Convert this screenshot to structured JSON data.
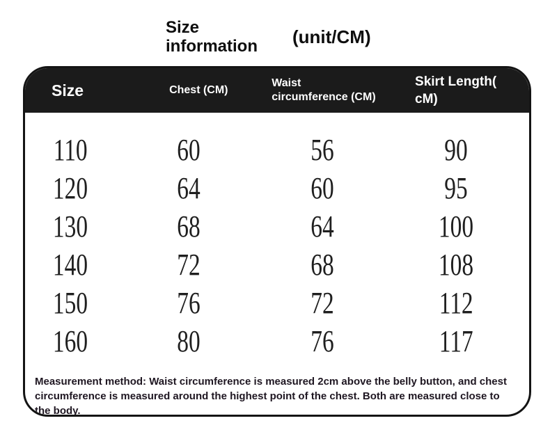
{
  "title": {
    "main": "Size information",
    "unit": "(unit/CM)"
  },
  "table": {
    "columns": [
      {
        "id": "size",
        "lines": [
          "Size"
        ]
      },
      {
        "id": "chest",
        "lines": [
          "Chest (CM)"
        ]
      },
      {
        "id": "waist",
        "lines": [
          "Waist",
          "circumference (CM)"
        ]
      },
      {
        "id": "skirt",
        "lines": [
          "Skirt Length(",
          "cM)"
        ]
      }
    ],
    "rows": [
      [
        "110",
        "60",
        "56",
        "90"
      ],
      [
        "120",
        "64",
        "60",
        "95"
      ],
      [
        "130",
        "68",
        "64",
        "100"
      ],
      [
        "140",
        "72",
        "68",
        "108"
      ],
      [
        "150",
        "76",
        "72",
        "112"
      ],
      [
        "160",
        "80",
        "76",
        "117"
      ]
    ],
    "note": "Measurement method: Waist circumference is measured 2cm above the belly button, and chest circumference is measured around the highest point of the chest. Both are measured close to the body."
  },
  "colors": {
    "page_bg": "#ffffff",
    "header_bg": "#1b1b1b",
    "border": "#141414",
    "header_text": "#ffffff",
    "title_text": "#0e0e0e",
    "number_text": "#1f1f1f",
    "note_text": "#1f1722"
  }
}
